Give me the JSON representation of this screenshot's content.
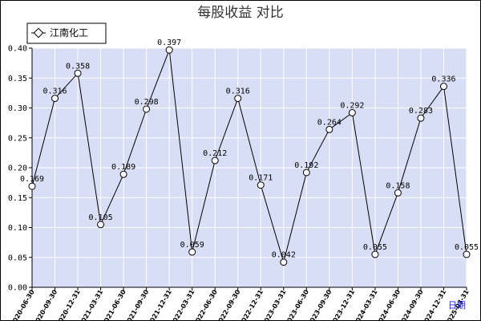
{
  "chart_data": {
    "type": "line",
    "title": "每股收益  对比",
    "xlabel": "",
    "ylabel": "",
    "x_unit_label": "日期",
    "ylim": [
      0,
      0.4
    ],
    "yticks": [
      "0.00",
      "0.05",
      "0.10",
      "0.15",
      "0.20",
      "0.25",
      "0.30",
      "0.35",
      "0.40"
    ],
    "grid": true,
    "legend_position": "top-left",
    "colors": {
      "line": "#000000",
      "plot_bg": "#d8def6",
      "grid": "#ffffff",
      "unit": "#1a1aff"
    },
    "categories": [
      "2020-06-30",
      "2020-09-30",
      "2020-12-31",
      "2021-03-31",
      "2021-06-30",
      "2021-09-30",
      "2021-12-31",
      "2022-03-31",
      "2022-06-30",
      "2022-09-30",
      "2022-12-31",
      "2023-03-31",
      "2023-06-30",
      "2023-09-30",
      "2023-12-31",
      "2024-03-31",
      "2024-06-30",
      "2024-09-30",
      "2024-12-31",
      "2025-03-31"
    ],
    "series": [
      {
        "name": "江南化工",
        "values": [
          0.169,
          0.316,
          0.358,
          0.105,
          0.189,
          0.298,
          0.397,
          0.059,
          0.212,
          0.316,
          0.171,
          0.042,
          0.192,
          0.264,
          0.292,
          0.055,
          0.158,
          0.283,
          0.336,
          0.055
        ],
        "labels": [
          "0.169",
          "0.316",
          "0.358",
          "0.105",
          "0.189",
          "0.298",
          "0.397",
          "0.059",
          "0.212",
          "0.316",
          "0.171",
          "0.042",
          "0.192",
          "0.264",
          "0.292",
          "0.055",
          "0.158",
          "0.283",
          "0.336",
          "0.055"
        ]
      }
    ]
  }
}
